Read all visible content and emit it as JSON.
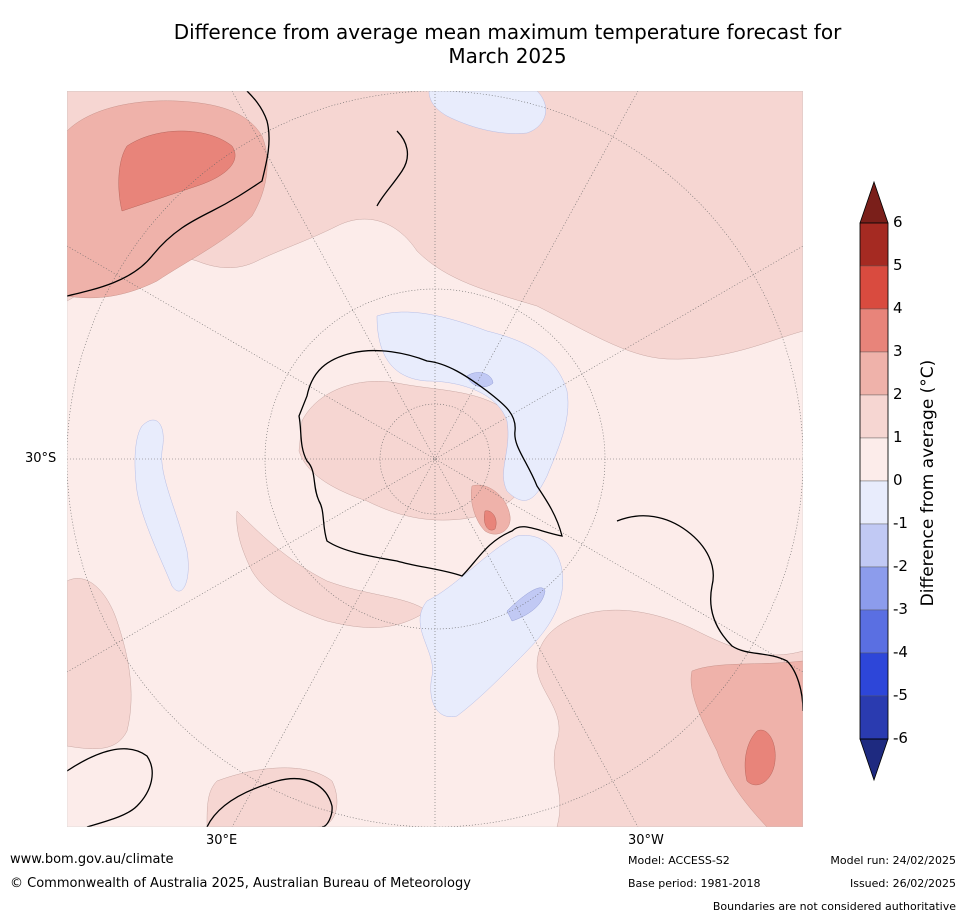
{
  "title_line1": "Difference from average mean maximum temperature forecast for",
  "title_line2": "March 2025",
  "map_labels": {
    "lat_30s": "30°S",
    "lon_30e": "30°E",
    "lon_30w": "30°W"
  },
  "colorbar": {
    "title": "Difference from average (°C)",
    "ticks": [
      "6",
      "5",
      "4",
      "3",
      "2",
      "1",
      "0",
      "-1",
      "-2",
      "-3",
      "-4",
      "-5",
      "-6"
    ],
    "colors_top_to_bottom": [
      "#7a1f1a",
      "#a52a22",
      "#d94b3f",
      "#e8847a",
      "#efb2aa",
      "#f6d6d2",
      "#fcecea",
      "#e8ecfc",
      "#c1c9f4",
      "#8c9cec",
      "#5a6fe2",
      "#2d46d9",
      "#2a3bb0",
      "#1e2a80"
    ]
  },
  "colors": {
    "warm_light": "#fcecea",
    "warm_1_2": "#f6d6d2",
    "warm_2_3": "#efb2aa",
    "warm_3_4": "#e8847a",
    "cool_light": "#e8ecfc",
    "cool_1_2": "#c1c9f4"
  },
  "footer": {
    "website": "www.bom.gov.au/climate",
    "copyright": "© Commonwealth of Australia 2025, Australian Bureau of Meteorology",
    "model": "Model: ACCESS-S2",
    "base_period": "Base period: 1981-2018",
    "model_run": "Model run: 24/02/2025",
    "issued": "Issued: 26/02/2025",
    "disclaimer": "Boundaries are not considered authoritative"
  }
}
